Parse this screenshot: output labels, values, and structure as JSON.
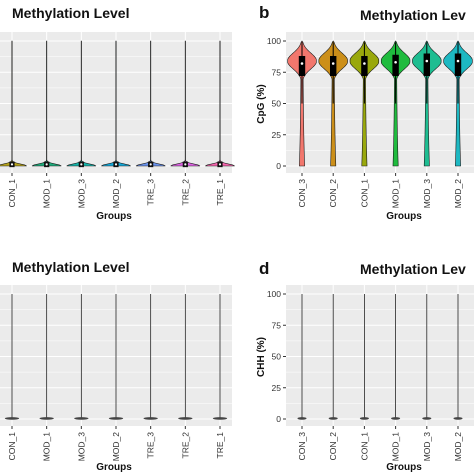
{
  "chart_data": [
    {
      "type": "violin",
      "panel": "",
      "title": "Methylation Level",
      "xlabel": "Groups",
      "ylabel": "",
      "categories": [
        "CON_1",
        "MOD_1",
        "MOD_3",
        "MOD_2",
        "TRE_3",
        "TRE_2",
        "TRE_1"
      ],
      "colors": [
        "#b5a21d",
        "#1eab7a",
        "#17b3a8",
        "#14a8d8",
        "#6a93ec",
        "#dc62e2",
        "#f565ad"
      ],
      "ylim": [
        0,
        100
      ],
      "show_y_ticks": false,
      "median": 1,
      "iqr": [
        0,
        3
      ],
      "note_shape": "mass concentrated near 0 with a long thin tail to 100"
    },
    {
      "type": "violin",
      "panel": "b",
      "title": "Methylation Lev",
      "xlabel": "Groups",
      "ylabel": "CpG (%)",
      "categories": [
        "CON_3",
        "CON_2",
        "CON_1",
        "MOD_1",
        "MOD_3",
        "MOD_2"
      ],
      "colors": [
        "#f2776d",
        "#cc8f19",
        "#99a80c",
        "#1fbb3e",
        "#1ebd91",
        "#1db8c2"
      ],
      "yticks": [
        0,
        25,
        50,
        75,
        100
      ],
      "ylim": [
        0,
        100
      ],
      "medians": [
        82,
        82,
        82,
        83,
        84,
        84
      ],
      "iqr": [
        [
          72,
          88
        ],
        [
          72,
          88
        ],
        [
          72,
          88
        ],
        [
          72,
          89
        ],
        [
          72,
          90
        ],
        [
          72,
          90
        ]
      ]
    },
    {
      "type": "violin",
      "panel": "",
      "title": "Methylation Level",
      "xlabel": "Groups",
      "ylabel": "",
      "categories": [
        "CON_1",
        "MOD_1",
        "MOD_3",
        "MOD_2",
        "TRE_3",
        "TRE_2",
        "TRE_1"
      ],
      "colors": [
        "#333333",
        "#333333",
        "#333333",
        "#333333",
        "#333333",
        "#333333",
        "#333333"
      ],
      "ylim": [
        0,
        100
      ],
      "show_y_ticks": false,
      "median": 0,
      "iqr": [
        0,
        1
      ]
    },
    {
      "type": "violin",
      "panel": "d",
      "title": "Methylation Lev",
      "xlabel": "Groups",
      "ylabel": "CHH (%)",
      "categories": [
        "CON_3",
        "CON_2",
        "CON_1",
        "MOD_1",
        "MOD_3",
        "MOD_2"
      ],
      "colors": [
        "#333333",
        "#333333",
        "#333333",
        "#333333",
        "#333333",
        "#333333"
      ],
      "yticks": [
        0,
        25,
        50,
        75,
        100
      ],
      "ylim": [
        0,
        100
      ],
      "median": 0,
      "iqr": [
        0,
        1
      ]
    }
  ],
  "style": {
    "panel_background": "#ebebeb",
    "gridline": "#ffffff",
    "box_color": "#000000"
  }
}
